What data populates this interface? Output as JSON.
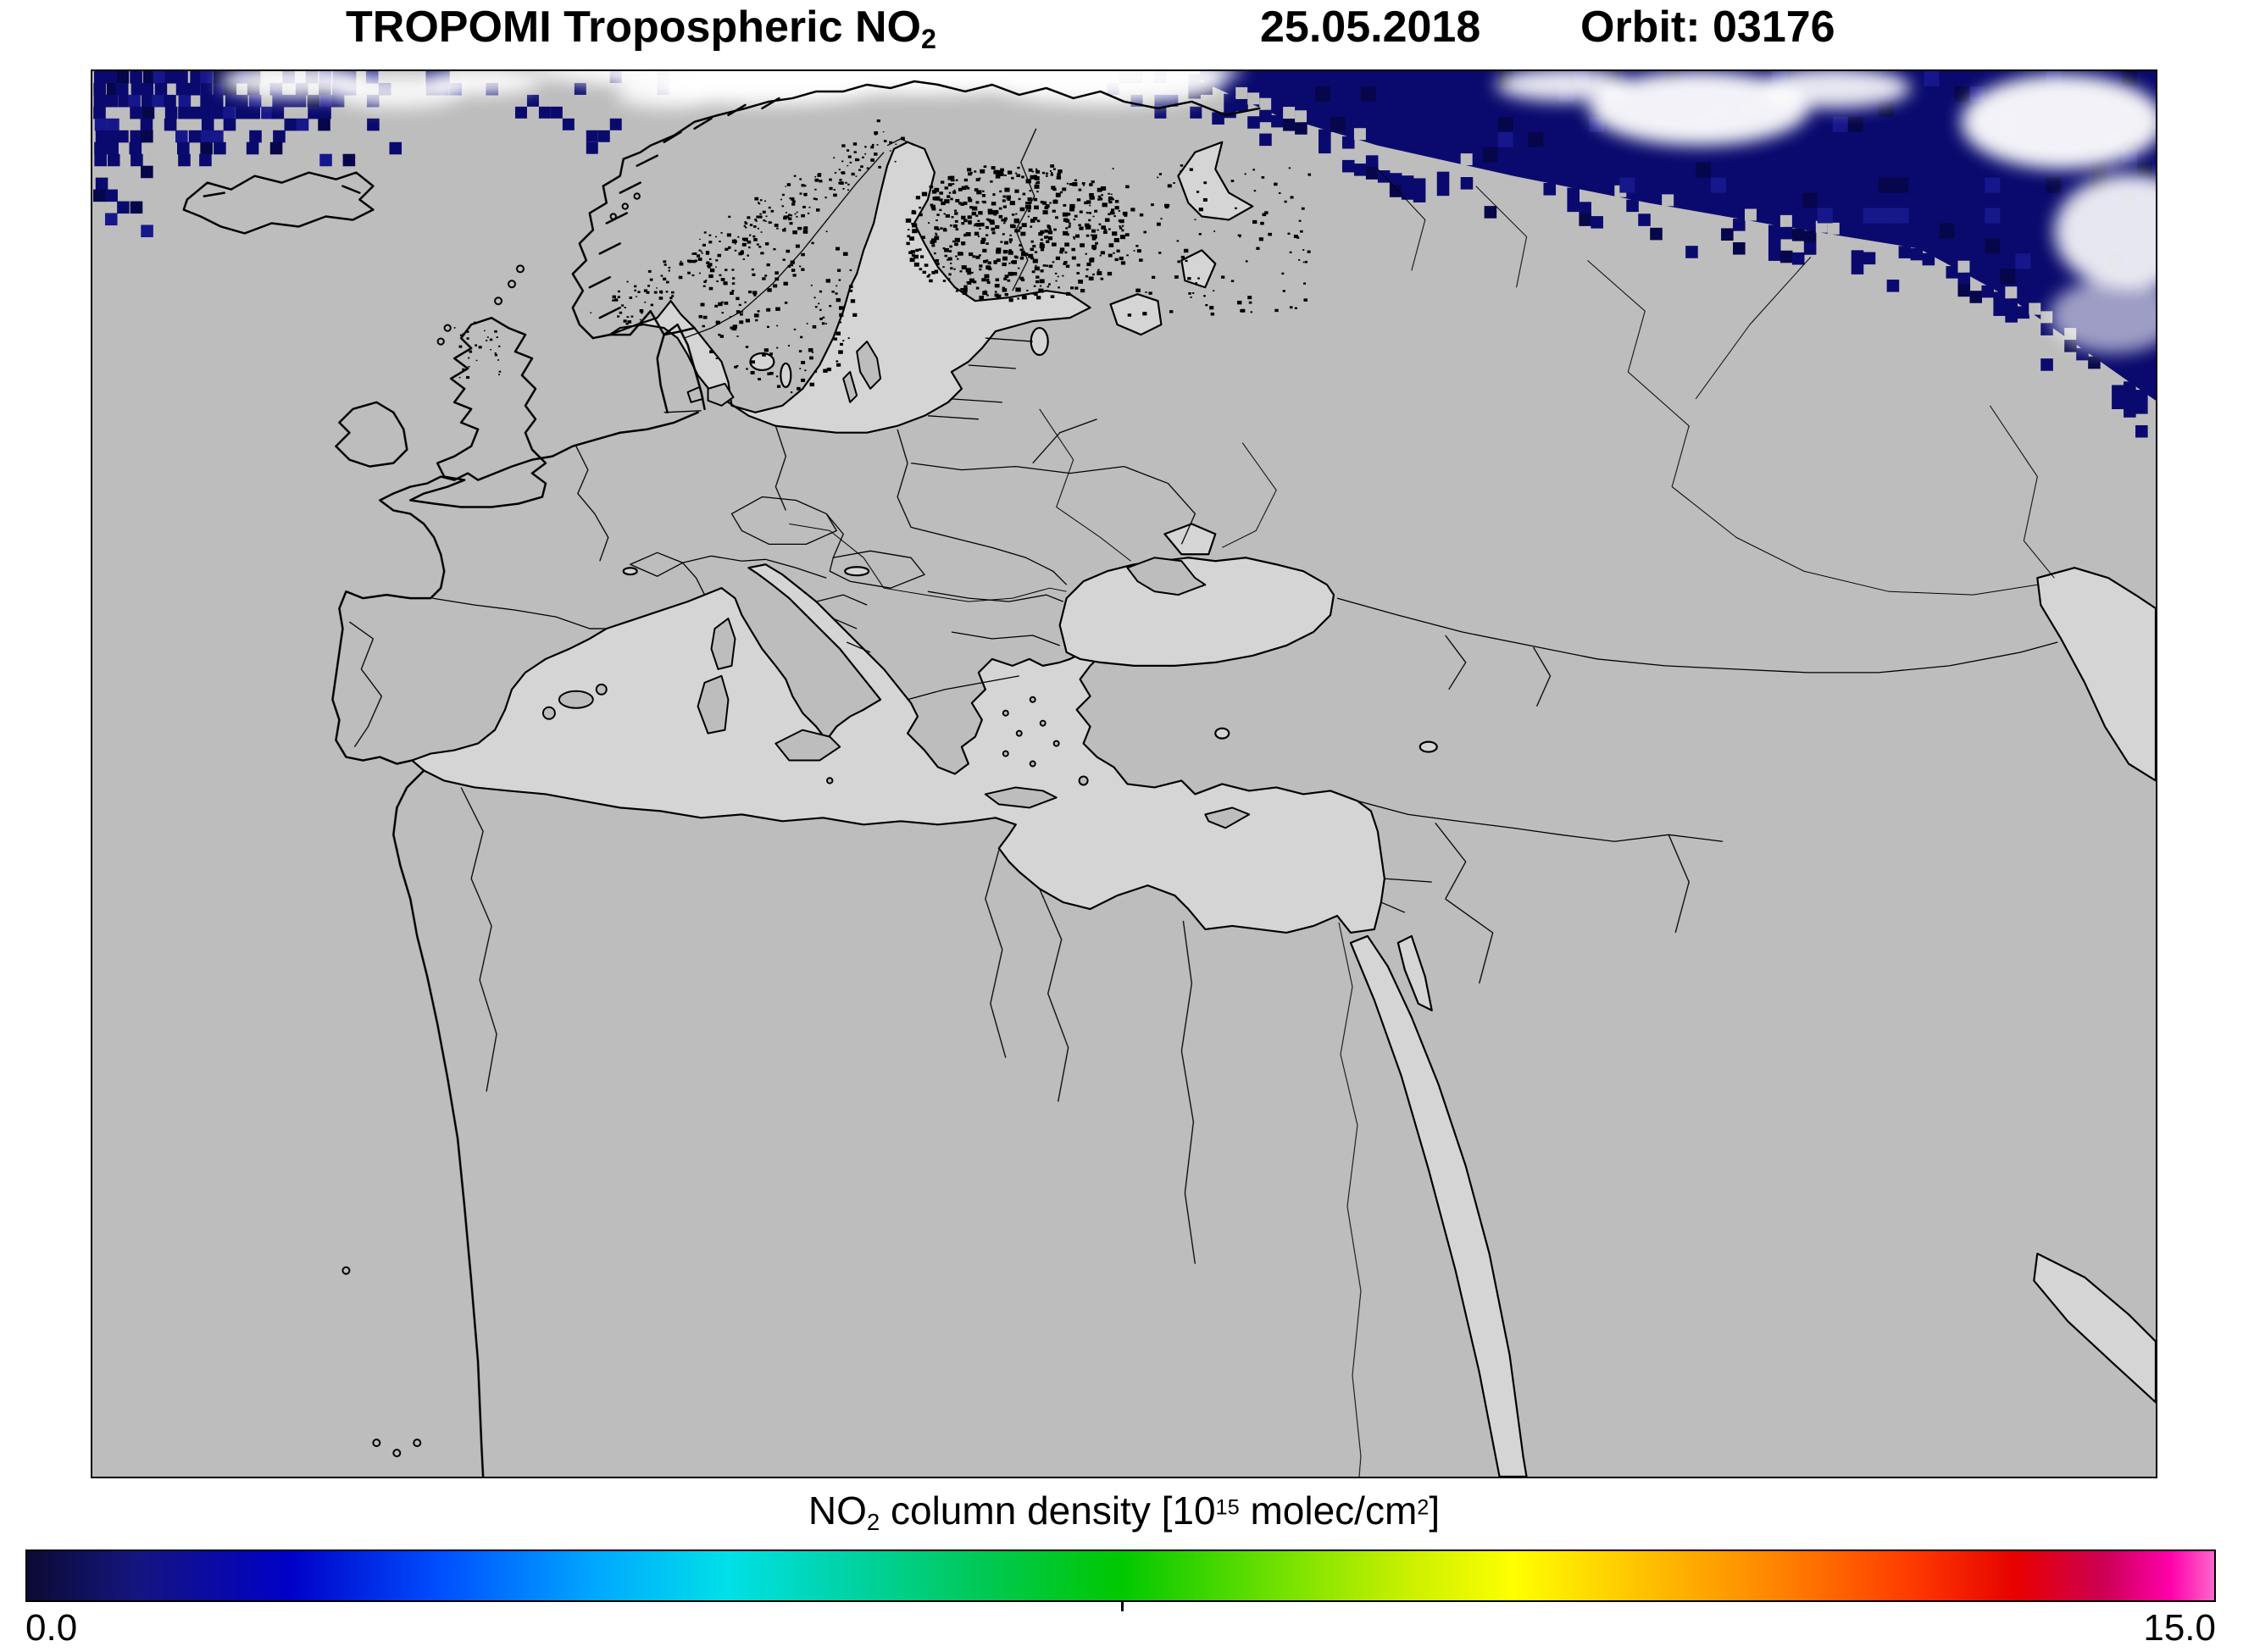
{
  "header": {
    "title_main": "TROPOMI Tropospheric NO",
    "title_sub": "2",
    "date": "25.05.2018",
    "orbit": "Orbit: 03176"
  },
  "colorbar": {
    "label": {
      "p1": "NO",
      "sub1": "2",
      "p2": " column density [10",
      "sup1": "15",
      "p3": " molec/cm",
      "sup2": "2",
      "p4": "]"
    },
    "min": "0.0",
    "max": "15.0",
    "unit_exponent": "15",
    "range": [
      0.0,
      15.0
    ],
    "stops": [
      [
        0.0,
        "#0b0b33"
      ],
      [
        0.05,
        "#151580"
      ],
      [
        0.12,
        "#0000c8"
      ],
      [
        0.19,
        "#0050ff"
      ],
      [
        0.26,
        "#00a8ff"
      ],
      [
        0.32,
        "#00e0e8"
      ],
      [
        0.38,
        "#00d2a0"
      ],
      [
        0.44,
        "#00c850"
      ],
      [
        0.5,
        "#00c800"
      ],
      [
        0.57,
        "#6ee000"
      ],
      [
        0.63,
        "#c8f000"
      ],
      [
        0.68,
        "#ffff00"
      ],
      [
        0.74,
        "#ffc000"
      ],
      [
        0.8,
        "#ff8400"
      ],
      [
        0.86,
        "#ff3c00"
      ],
      [
        0.91,
        "#e60000"
      ],
      [
        0.95,
        "#cc0055"
      ],
      [
        0.98,
        "#ff00aa"
      ],
      [
        1.0,
        "#ff66cc"
      ]
    ]
  },
  "map": {
    "land": "#bdbdbd",
    "sea": "#d5d5d5",
    "coast": "#000000",
    "swath_dark": "#0a0a6e",
    "swath_darker": "#06064a",
    "swath_light": "#17178c",
    "cloud": "#ffffff"
  }
}
